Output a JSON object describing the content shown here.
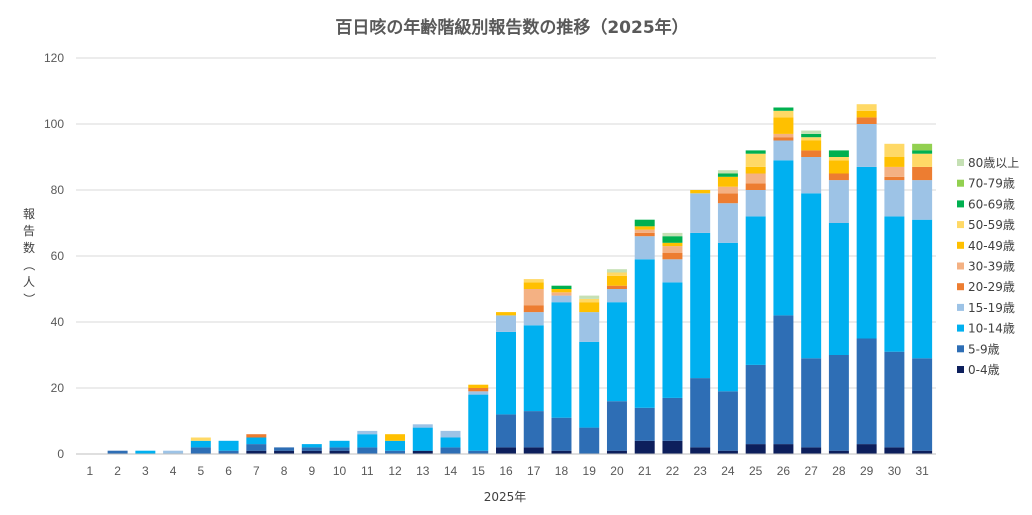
{
  "chart_data": {
    "type": "bar",
    "stacked": true,
    "title": "百日咳の年齢階級別報告数の推移（2025年）",
    "xlabel": "2025年",
    "ylabel": "報告数（人）",
    "ylim": [
      0,
      120
    ],
    "yticks": [
      0,
      20,
      40,
      60,
      80,
      100,
      120
    ],
    "grid": true,
    "legend_position": "right",
    "categories": [
      "1",
      "2",
      "3",
      "4",
      "5",
      "6",
      "7",
      "8",
      "9",
      "10",
      "11",
      "12",
      "13",
      "14",
      "15",
      "16",
      "17",
      "18",
      "19",
      "20",
      "21",
      "22",
      "23",
      "24",
      "25",
      "26",
      "27",
      "28",
      "29",
      "30",
      "31"
    ],
    "series": [
      {
        "name": "0-4歳",
        "color": "#0d1f5c",
        "values": [
          0,
          0,
          0,
          0,
          0,
          0,
          1,
          1,
          1,
          1,
          0,
          0,
          1,
          0,
          0,
          2,
          2,
          1,
          0,
          1,
          4,
          4,
          2,
          1,
          3,
          3,
          2,
          1,
          3,
          2,
          1
        ]
      },
      {
        "name": "5-9歳",
        "color": "#2e6eb5",
        "values": [
          0,
          1,
          0,
          0,
          2,
          1,
          2,
          1,
          1,
          1,
          2,
          1,
          0,
          2,
          1,
          10,
          11,
          10,
          8,
          15,
          10,
          13,
          21,
          18,
          24,
          39,
          27,
          29,
          32,
          29,
          28
        ]
      },
      {
        "name": "10-14歳",
        "color": "#00b0f0",
        "values": [
          0,
          0,
          1,
          0,
          2,
          3,
          2,
          0,
          1,
          2,
          4,
          3,
          7,
          3,
          17,
          25,
          26,
          35,
          26,
          30,
          45,
          35,
          44,
          45,
          45,
          47,
          50,
          40,
          52,
          41,
          42
        ]
      },
      {
        "name": "15-19歳",
        "color": "#9dc3e6",
        "values": [
          0,
          0,
          0,
          1,
          0,
          0,
          0,
          0,
          0,
          0,
          1,
          0,
          1,
          2,
          1,
          5,
          4,
          2,
          9,
          4,
          7,
          7,
          12,
          12,
          8,
          6,
          11,
          13,
          13,
          11,
          12
        ]
      },
      {
        "name": "20-29歳",
        "color": "#ed7d31",
        "values": [
          0,
          0,
          0,
          0,
          0,
          0,
          1,
          0,
          0,
          0,
          0,
          0,
          0,
          0,
          1,
          0,
          2,
          0,
          0,
          1,
          1,
          2,
          0,
          3,
          2,
          1,
          2,
          2,
          2,
          1,
          4
        ]
      },
      {
        "name": "30-39歳",
        "color": "#f4b183",
        "values": [
          0,
          0,
          0,
          0,
          0,
          0,
          0,
          0,
          0,
          0,
          0,
          0,
          0,
          0,
          0,
          0,
          5,
          1,
          0,
          0,
          1,
          2,
          0,
          2,
          3,
          1,
          0,
          0,
          0,
          3,
          0
        ]
      },
      {
        "name": "40-49歳",
        "color": "#ffc000",
        "values": [
          0,
          0,
          0,
          0,
          0,
          0,
          0,
          0,
          0,
          0,
          0,
          2,
          0,
          0,
          1,
          1,
          2,
          1,
          3,
          3,
          1,
          1,
          1,
          3,
          2,
          5,
          3,
          4,
          2,
          3,
          0
        ]
      },
      {
        "name": "50-59歳",
        "color": "#ffd966",
        "values": [
          0,
          0,
          0,
          0,
          1,
          0,
          0,
          0,
          0,
          0,
          0,
          0,
          0,
          0,
          0,
          0,
          1,
          0,
          1,
          1,
          0,
          0,
          0,
          0,
          4,
          2,
          1,
          1,
          2,
          4,
          4
        ]
      },
      {
        "name": "60-69歳",
        "color": "#00b050",
        "values": [
          0,
          0,
          0,
          0,
          0,
          0,
          0,
          0,
          0,
          0,
          0,
          0,
          0,
          0,
          0,
          0,
          0,
          1,
          0,
          0,
          2,
          2,
          0,
          1,
          1,
          1,
          1,
          2,
          0,
          0,
          1
        ]
      },
      {
        "name": "70-79歳",
        "color": "#92d050",
        "values": [
          0,
          0,
          0,
          0,
          0,
          0,
          0,
          0,
          0,
          0,
          0,
          0,
          0,
          0,
          0,
          0,
          0,
          0,
          0,
          0,
          0,
          0,
          0,
          0,
          0,
          0,
          0,
          0,
          0,
          0,
          2
        ]
      },
      {
        "name": "80歳以上",
        "color": "#c5e0b4",
        "values": [
          0,
          0,
          0,
          0,
          0,
          0,
          0,
          0,
          0,
          0,
          0,
          0,
          0,
          0,
          0,
          0,
          0,
          0,
          1,
          1,
          0,
          1,
          0,
          1,
          0,
          0,
          1,
          0,
          0,
          0,
          0
        ]
      }
    ]
  }
}
